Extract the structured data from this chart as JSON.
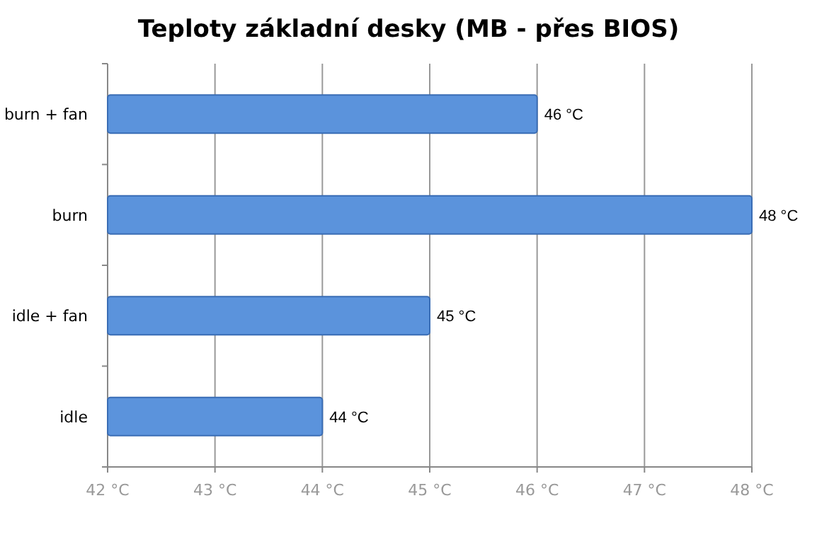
{
  "chart_data": {
    "type": "bar",
    "orientation": "horizontal",
    "title": "Teploty základní desky (MB - přes BIOS)",
    "categories": [
      "burn + fan",
      "burn",
      "idle + fan",
      "idle"
    ],
    "values": [
      46,
      48,
      45,
      44
    ],
    "color": "#5b93dc",
    "value_labels": [
      "46 °C",
      "48 °C",
      "45 °C",
      "44 °C"
    ],
    "xlim": [
      42,
      48
    ],
    "xticks": [
      {
        "value": 42,
        "label": "42 °C"
      },
      {
        "value": 43,
        "label": "43 °C"
      },
      {
        "value": 44,
        "label": "44 °C"
      },
      {
        "value": 45,
        "label": "45 °C"
      },
      {
        "value": 46,
        "label": "46 °C"
      },
      {
        "value": 47,
        "label": "47 °C"
      },
      {
        "value": 48,
        "label": "48 °C"
      }
    ],
    "grid": "x"
  }
}
